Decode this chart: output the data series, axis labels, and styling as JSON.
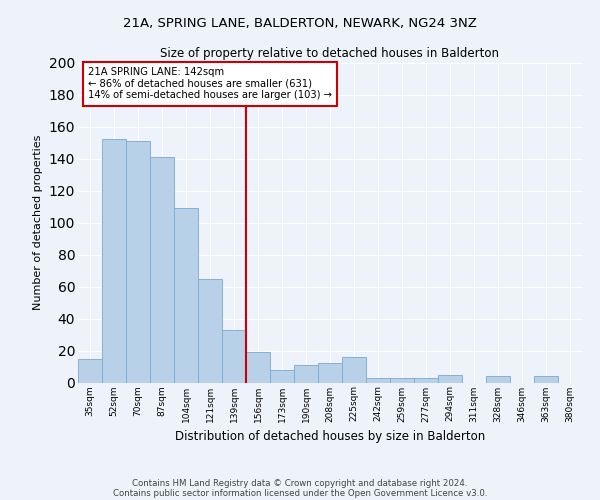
{
  "title1": "21A, SPRING LANE, BALDERTON, NEWARK, NG24 3NZ",
  "title2": "Size of property relative to detached houses in Balderton",
  "xlabel": "Distribution of detached houses by size in Balderton",
  "ylabel": "Number of detached properties",
  "categories": [
    "35sqm",
    "52sqm",
    "70sqm",
    "87sqm",
    "104sqm",
    "121sqm",
    "139sqm",
    "156sqm",
    "173sqm",
    "190sqm",
    "208sqm",
    "225sqm",
    "242sqm",
    "259sqm",
    "277sqm",
    "294sqm",
    "311sqm",
    "328sqm",
    "346sqm",
    "363sqm",
    "380sqm"
  ],
  "values": [
    15,
    152,
    151,
    141,
    109,
    65,
    33,
    19,
    8,
    11,
    12,
    16,
    3,
    3,
    3,
    5,
    0,
    4,
    0,
    4,
    0
  ],
  "bar_color": "#b8d0e8",
  "bar_edge_color": "#7aaad0",
  "ylim": [
    0,
    200
  ],
  "yticks": [
    0,
    20,
    40,
    60,
    80,
    100,
    120,
    140,
    160,
    180,
    200
  ],
  "property_label": "21A SPRING LANE: 142sqm",
  "annotation_line1": "← 86% of detached houses are smaller (631)",
  "annotation_line2": "14% of semi-detached houses are larger (103) →",
  "vline_color": "#cc0000",
  "background_color": "#eef2fa",
  "grid_color": "#ffffff",
  "footer1": "Contains HM Land Registry data © Crown copyright and database right 2024.",
  "footer2": "Contains public sector information licensed under the Open Government Licence v3.0."
}
